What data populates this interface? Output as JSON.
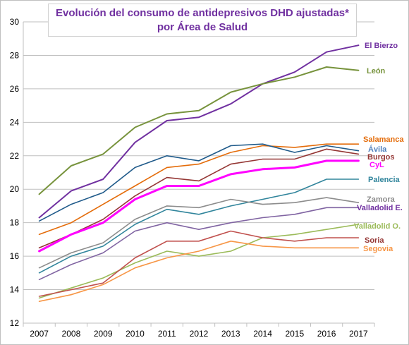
{
  "chart_data": {
    "type": "line",
    "title": "Evolución del consumo de antidepresivos DHD ajustadas*",
    "subtitle": "por Área de Salud",
    "x": [
      "2007",
      "2008",
      "2009",
      "2010",
      "2011",
      "2012",
      "2013",
      "2014",
      "2015",
      "2016",
      "2017"
    ],
    "ylim": [
      12,
      30
    ],
    "yticks": [
      "12",
      "14",
      "16",
      "18",
      "20",
      "22",
      "24",
      "26",
      "28",
      "30"
    ],
    "grid": true,
    "series": [
      {
        "name": "El Bierzo",
        "color": "#7030a0",
        "width": 2,
        "values": [
          18.3,
          19.9,
          20.6,
          22.8,
          24.1,
          24.3,
          25.1,
          26.3,
          27.0,
          28.2,
          28.6
        ]
      },
      {
        "name": "León",
        "color": "#77933c",
        "width": 2,
        "values": [
          19.7,
          21.4,
          22.1,
          23.7,
          24.5,
          24.7,
          25.8,
          26.3,
          26.7,
          27.3,
          27.1
        ]
      },
      {
        "name": "Salamanca",
        "color": "#e46c0a",
        "width": 1.6,
        "values": [
          17.3,
          18.0,
          19.1,
          20.2,
          21.3,
          21.5,
          22.2,
          22.6,
          22.5,
          22.7,
          22.7
        ]
      },
      {
        "name": "Ávila",
        "color": "#1f5a8a",
        "width": 1.6,
        "values": [
          18.1,
          19.1,
          19.8,
          21.3,
          22.0,
          21.7,
          22.6,
          22.7,
          22.2,
          22.6,
          22.3
        ]
      },
      {
        "name": "Burgos",
        "color": "#953735",
        "width": 1.6,
        "values": [
          16.5,
          17.3,
          18.2,
          19.6,
          20.7,
          20.5,
          21.5,
          21.8,
          21.8,
          22.4,
          22.1
        ]
      },
      {
        "name": "CyL",
        "color": "#ff00ff",
        "width": 3,
        "values": [
          16.3,
          17.3,
          18.0,
          19.4,
          20.2,
          20.2,
          20.9,
          21.2,
          21.3,
          21.7,
          21.7
        ]
      },
      {
        "name": "Palencia",
        "color": "#31859c",
        "width": 1.6,
        "values": [
          15.0,
          16.0,
          16.6,
          17.9,
          18.8,
          18.5,
          19.0,
          19.4,
          19.8,
          20.6,
          20.6
        ]
      },
      {
        "name": "Zamora",
        "color": "#8c8c8c",
        "width": 1.6,
        "values": [
          15.3,
          16.2,
          16.8,
          18.2,
          19.0,
          18.9,
          19.4,
          19.1,
          19.2,
          19.5,
          19.2
        ]
      },
      {
        "name": "Valladolid E.",
        "color": "#8064a2",
        "width": 1.6,
        "values": [
          14.6,
          15.5,
          16.2,
          17.5,
          18.0,
          17.6,
          18.0,
          18.3,
          18.5,
          18.9,
          18.9
        ]
      },
      {
        "name": "Valladolid O.",
        "color": "#9bbb59",
        "width": 1.6,
        "values": [
          13.5,
          14.1,
          14.7,
          15.6,
          16.3,
          16.0,
          16.3,
          17.1,
          17.3,
          17.6,
          17.9
        ]
      },
      {
        "name": "Soria",
        "color": "#c0504d",
        "width": 1.6,
        "values": [
          13.6,
          14.0,
          14.4,
          15.9,
          16.9,
          16.9,
          17.5,
          17.1,
          16.9,
          17.1,
          17.1
        ]
      },
      {
        "name": "Segovia",
        "color": "#f79646",
        "width": 1.6,
        "values": [
          13.3,
          13.7,
          14.3,
          15.3,
          15.9,
          16.3,
          16.9,
          16.6,
          16.5,
          16.5,
          16.5
        ]
      }
    ],
    "labels": [
      {
        "text": "El Bierzo",
        "color": "#7030a0"
      },
      {
        "text": "León",
        "color": "#77933c"
      },
      {
        "text": "Salamanca",
        "color": "#e46c0a"
      },
      {
        "text": "Ávila",
        "color": "#4f81bd"
      },
      {
        "text": "Burgos",
        "color": "#953735"
      },
      {
        "text": "CyL",
        "color": "#ff00ff"
      },
      {
        "text": "Palencia",
        "color": "#31859c"
      },
      {
        "text": "Zamora",
        "color": "#8c8c8c"
      },
      {
        "text": "Valladolid  E.",
        "color": "#7030a0"
      },
      {
        "text": "Valladolid  O.",
        "color": "#9bbb59"
      },
      {
        "text": "Soria",
        "color": "#953735"
      },
      {
        "text": "Segovia",
        "color": "#f79646"
      }
    ]
  }
}
